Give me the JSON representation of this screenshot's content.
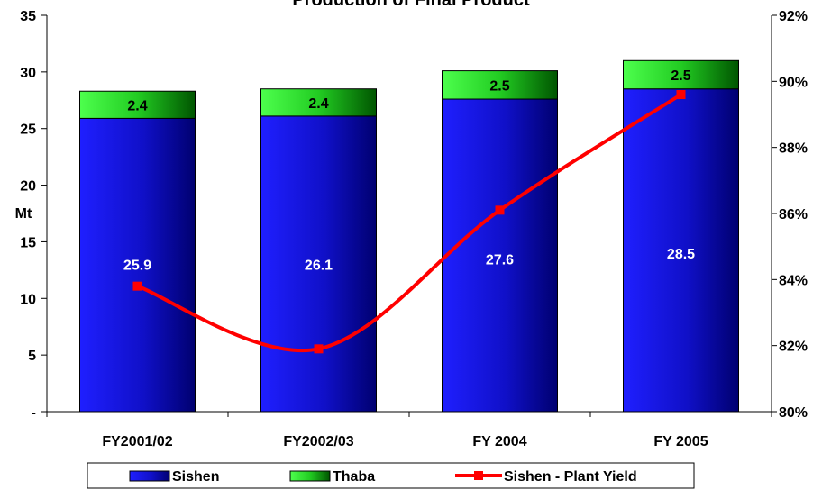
{
  "chart_data": {
    "type": "bar",
    "stacked": true,
    "title": "Production of Final Product",
    "categories": [
      "FY2001/02",
      "FY2002/03",
      "FY 2004",
      "FY 2005"
    ],
    "ylabel": "Mt",
    "ylim": [
      0,
      35
    ],
    "y_ticks": [
      "-",
      "5",
      "10",
      "15",
      "20",
      "25",
      "30",
      "35"
    ],
    "y2lim": [
      80,
      92
    ],
    "y2_ticks": [
      "80%",
      "82%",
      "84%",
      "86%",
      "88%",
      "90%",
      "92%"
    ],
    "series": [
      {
        "name": "Sishen",
        "kind": "bar",
        "color": "#1a1ae6",
        "color_dark": "#000080",
        "values": [
          25.9,
          26.1,
          27.6,
          28.5
        ],
        "labels": [
          "25.9",
          "26.1",
          "27.6",
          "28.5"
        ]
      },
      {
        "name": "Thaba",
        "kind": "bar",
        "color": "#33ff33",
        "color_dark": "#006600",
        "values": [
          2.4,
          2.4,
          2.5,
          2.5
        ],
        "labels": [
          "2.4",
          "2.4",
          "2.5",
          "2.5"
        ]
      },
      {
        "name": "Sishen - Plant Yield",
        "kind": "line",
        "axis": "secondary",
        "color": "#ff0000",
        "values": [
          83.8,
          81.9,
          86.1,
          89.6
        ]
      }
    ],
    "legend": {
      "position": "bottom",
      "items": [
        "Sishen",
        "Thaba",
        "Sishen - Plant Yield"
      ]
    },
    "grid": false
  }
}
